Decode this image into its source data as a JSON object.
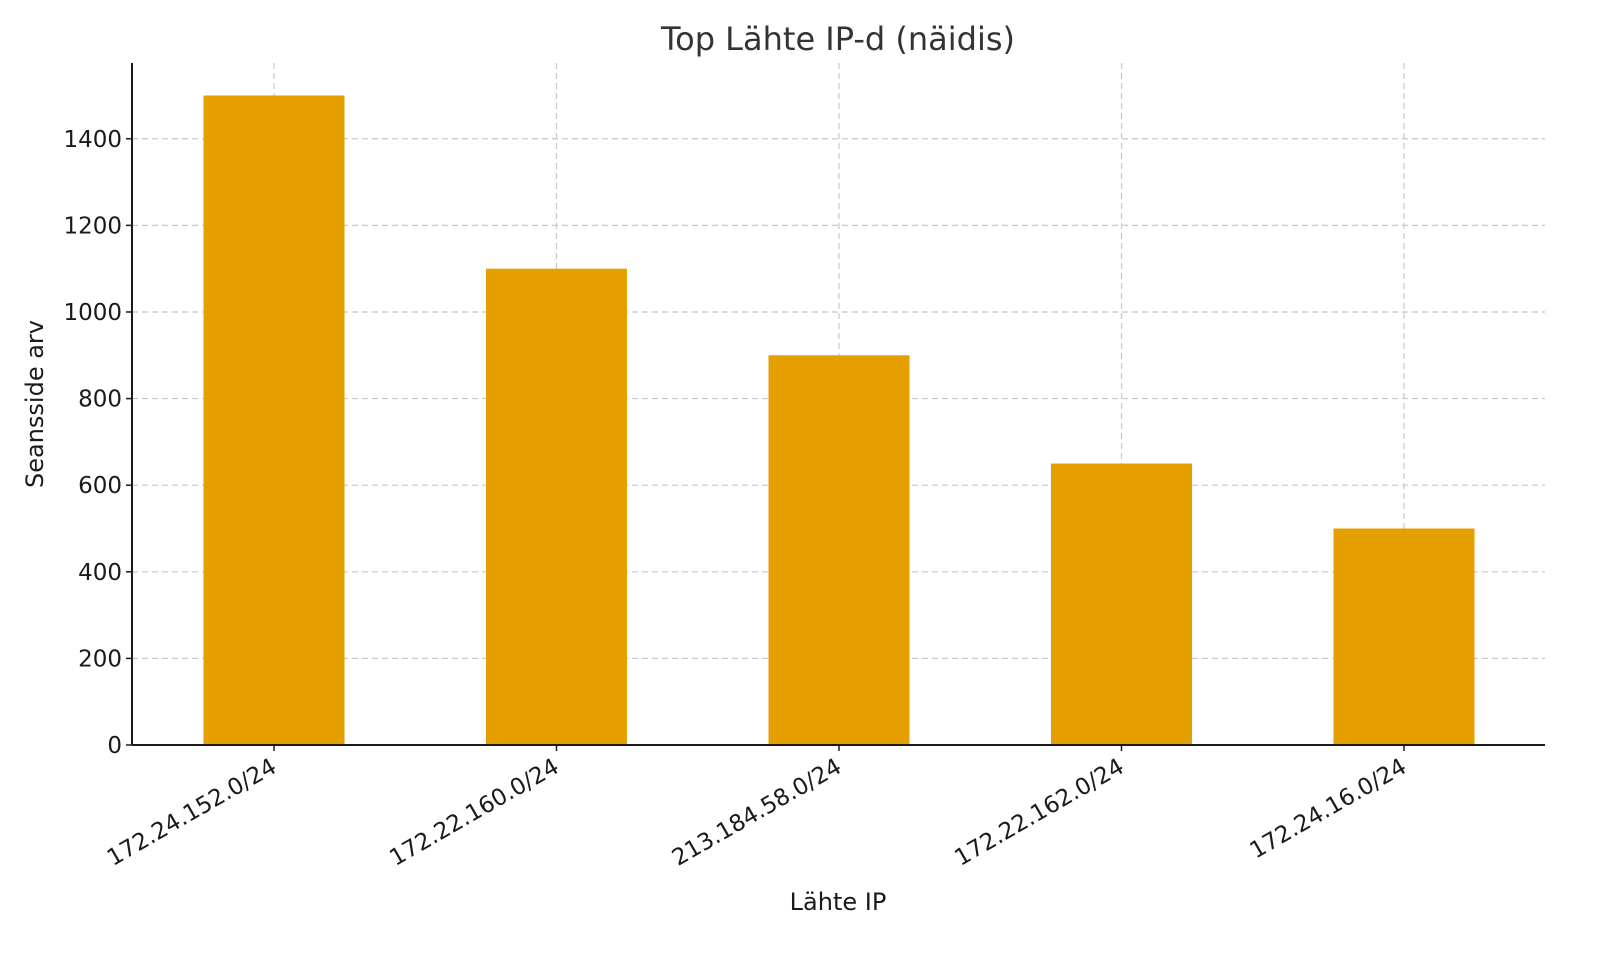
{
  "chart_data": {
    "type": "bar",
    "title": "Top Lähte IP-d (näidis)",
    "xlabel": "Lähte IP",
    "ylabel": "Seansside arv",
    "categories": [
      "172.24.152.0/24",
      "172.22.160.0/24",
      "213.184.58.0/24",
      "172.22.162.0/24",
      "172.24.16.0/24"
    ],
    "values": [
      1500,
      1100,
      900,
      650,
      500
    ],
    "yticks": [
      0,
      200,
      400,
      600,
      800,
      1000,
      1200,
      1400
    ],
    "ylim": [
      0,
      1575
    ],
    "grid": true,
    "bar_color": "#E69F00"
  }
}
